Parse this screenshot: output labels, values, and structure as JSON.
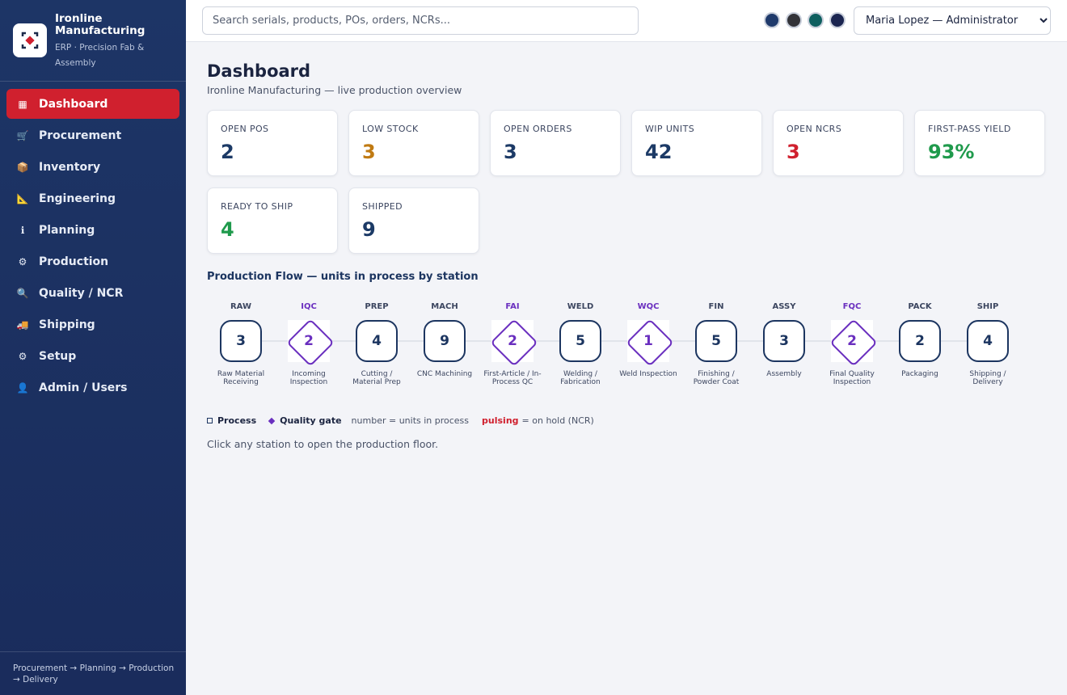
{
  "brand": {
    "name": "Ironline Manufacturing",
    "subtitle": "ERP · Precision Fab & Assembly"
  },
  "nav": [
    {
      "icon": "▦",
      "label": "Dashboard",
      "active": true
    },
    {
      "icon": "🛒",
      "label": "Procurement",
      "active": false
    },
    {
      "icon": "📦",
      "label": "Inventory",
      "active": false
    },
    {
      "icon": "📐",
      "label": "Engineering",
      "active": false
    },
    {
      "icon": "ℹ",
      "label": "Planning",
      "active": false
    },
    {
      "icon": "⚙",
      "label": "Production",
      "active": false
    },
    {
      "icon": "🔍",
      "label": "Quality / NCR",
      "active": false
    },
    {
      "icon": "🚚",
      "label": "Shipping",
      "active": false
    },
    {
      "icon": "⚙",
      "label": "Setup",
      "active": false
    },
    {
      "icon": "👤",
      "label": "Admin / Users",
      "active": false
    }
  ],
  "sidebar_footer": "Procurement → Planning → Production → Delivery",
  "search_placeholder": "Search serials, products, POs, orders, NCRs...",
  "theme_colors": [
    "#1f3a6b",
    "#333338",
    "#0e5f5f",
    "#1b2550"
  ],
  "user_select": "Maria Lopez — Administrator",
  "page": {
    "title": "Dashboard",
    "subtitle": "Ironline Manufacturing — live production overview"
  },
  "kpis": [
    {
      "label": "OPEN POS",
      "value": 2,
      "color": "#1c3a66"
    },
    {
      "label": "LOW STOCK",
      "value": 3,
      "color": "#c07a12"
    },
    {
      "label": "OPEN ORDERS",
      "value": 3,
      "color": "#1c3a66"
    },
    {
      "label": "WIP UNITS",
      "value": 42,
      "color": "#1c3a66"
    },
    {
      "label": "OPEN NCRS",
      "value": 3,
      "color": "#d0202e"
    },
    {
      "label": "FIRST-PASS YIELD",
      "value": "93%",
      "color": "#1f9a4c"
    },
    {
      "label": "READY TO SHIP",
      "value": 4,
      "color": "#1f9a4c"
    },
    {
      "label": "SHIPPED",
      "value": 9,
      "color": "#1c3a66"
    }
  ],
  "flow": {
    "title": "Production Flow — units in process by station",
    "stations": [
      {
        "code": "RAW",
        "count": 3,
        "name": "Raw Material Receiving",
        "kind": "process"
      },
      {
        "code": "IQC",
        "count": 2,
        "name": "Incoming Inspection",
        "kind": "gate"
      },
      {
        "code": "PREP",
        "count": 4,
        "name": "Cutting / Material Prep",
        "kind": "process"
      },
      {
        "code": "MACH",
        "count": 9,
        "name": "CNC Machining",
        "kind": "process"
      },
      {
        "code": "FAI",
        "count": 2,
        "name": "First-Article / In-Process QC",
        "kind": "gate"
      },
      {
        "code": "WELD",
        "count": 5,
        "name": "Welding / Fabrication",
        "kind": "process"
      },
      {
        "code": "WQC",
        "count": 1,
        "name": "Weld Inspection",
        "kind": "gate"
      },
      {
        "code": "FIN",
        "count": 5,
        "name": "Finishing / Powder Coat",
        "kind": "process"
      },
      {
        "code": "ASSY",
        "count": 3,
        "name": "Assembly",
        "kind": "process"
      },
      {
        "code": "FQC",
        "count": 2,
        "name": "Final Quality Inspection",
        "kind": "gate"
      },
      {
        "code": "PACK",
        "count": 2,
        "name": "Packaging",
        "kind": "process"
      },
      {
        "code": "SHIP",
        "count": 4,
        "name": "Shipping / Delivery",
        "kind": "process"
      }
    ]
  },
  "legend": {
    "process": "Process",
    "gate": "Quality gate",
    "number_note": "number = units in process",
    "pulsing": "pulsing",
    "pulsing_note": "= on hold (NCR)"
  },
  "hint": "Click any station to open the production floor."
}
